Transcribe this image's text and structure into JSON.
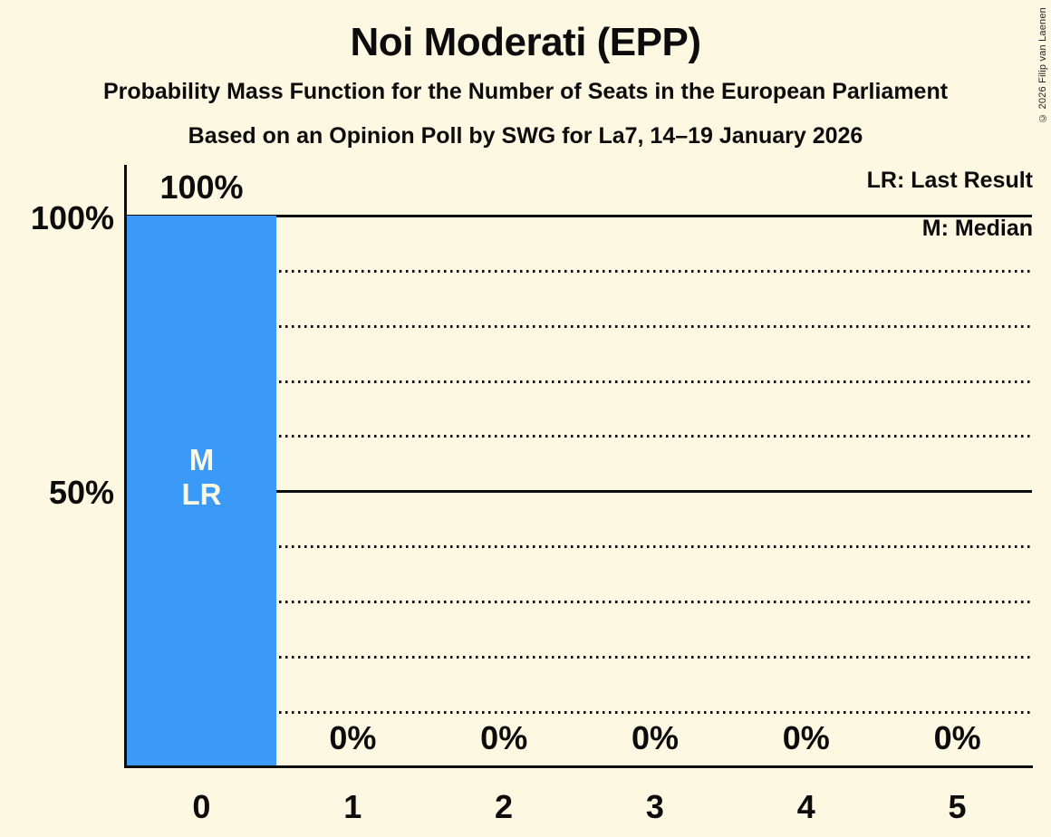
{
  "copyright": "© 2026 Filip van Laenen",
  "chart_data": {
    "type": "bar",
    "title": "Noi Moderati (EPP)",
    "subtitle": "Probability Mass Function for the Number of Seats in the European Parliament",
    "source_line": "Based on an Opinion Poll by SWG for La7, 14–19 January 2026",
    "categories": [
      "0",
      "1",
      "2",
      "3",
      "4",
      "5"
    ],
    "values": [
      100,
      0,
      0,
      0,
      0,
      0
    ],
    "value_labels": [
      "100%",
      "0%",
      "0%",
      "0%",
      "0%",
      "0%"
    ],
    "ylim": [
      0,
      100
    ],
    "ytick_labels": [
      "100%",
      "50%"
    ],
    "grid": "dotted horizontal lines each 10%, solid lines at 50% and 100%",
    "legend_position": "top-right",
    "legend": [
      "LR: Last Result",
      "M: Median"
    ],
    "bar_annotations": [
      "M",
      "LR"
    ],
    "median_seats": "0",
    "last_result_seats": "0",
    "colors": {
      "bar": "#3B99F7",
      "background": "#FDF8E2",
      "text": "#0C0C0C"
    }
  }
}
